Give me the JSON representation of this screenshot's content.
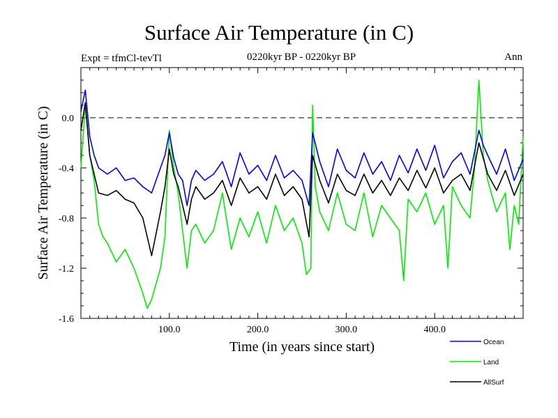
{
  "chart_data": {
    "type": "line",
    "title": "Surface Air Temperature (in C)",
    "subtitle_left": "Expt = tfmCl-tevTl",
    "subtitle_center": "0220kyr BP - 0220kyr BP",
    "subtitle_right": "Ann",
    "xlabel": "Time (in years since start)",
    "ylabel": "Surface Air Temperature (in C)",
    "xlim": [
      0,
      500
    ],
    "ylim": [
      -1.6,
      0.4
    ],
    "xticks": [
      {
        "value": 100,
        "label": "100.0"
      },
      {
        "value": 200,
        "label": "200.0"
      },
      {
        "value": 300,
        "label": "300.0"
      },
      {
        "value": 400,
        "label": "400.0"
      }
    ],
    "yticks": [
      {
        "value": 0.0,
        "label": "0.0"
      },
      {
        "value": -0.4,
        "label": "-0.4"
      },
      {
        "value": -0.8,
        "label": "-0.8"
      },
      {
        "value": -1.2,
        "label": "-1.2"
      },
      {
        "value": -1.6,
        "label": "-1.6"
      }
    ],
    "reference_line": {
      "y": 0.0,
      "style": "dashed"
    },
    "legend_placement": "bottom-right",
    "series": [
      {
        "name": "Ocean",
        "color": "#0000ee",
        "x": [
          0,
          5,
          10,
          15,
          20,
          30,
          40,
          50,
          60,
          70,
          80,
          90,
          95,
          100,
          105,
          110,
          115,
          120,
          125,
          130,
          140,
          150,
          160,
          170,
          180,
          190,
          200,
          210,
          220,
          230,
          240,
          250,
          258,
          262,
          270,
          280,
          290,
          300,
          310,
          320,
          330,
          340,
          350,
          360,
          370,
          380,
          390,
          400,
          410,
          420,
          430,
          440,
          450,
          455,
          460,
          470,
          480,
          490,
          500
        ],
        "y": [
          0.05,
          0.22,
          -0.15,
          -0.3,
          -0.4,
          -0.45,
          -0.4,
          -0.5,
          -0.48,
          -0.55,
          -0.6,
          -0.4,
          -0.3,
          -0.12,
          -0.32,
          -0.45,
          -0.5,
          -0.7,
          -0.5,
          -0.42,
          -0.5,
          -0.45,
          -0.35,
          -0.55,
          -0.28,
          -0.45,
          -0.38,
          -0.5,
          -0.3,
          -0.48,
          -0.42,
          -0.5,
          -0.7,
          -0.12,
          -0.35,
          -0.55,
          -0.25,
          -0.42,
          -0.48,
          -0.28,
          -0.45,
          -0.35,
          -0.5,
          -0.3,
          -0.44,
          -0.25,
          -0.42,
          -0.22,
          -0.48,
          -0.35,
          -0.28,
          -0.45,
          -0.1,
          -0.22,
          -0.3,
          -0.45,
          -0.25,
          -0.5,
          -0.33
        ]
      },
      {
        "name": "Land",
        "color": "#00ee00",
        "x": [
          0,
          5,
          10,
          15,
          20,
          25,
          30,
          40,
          50,
          60,
          70,
          75,
          80,
          90,
          95,
          100,
          105,
          110,
          115,
          120,
          125,
          130,
          140,
          150,
          160,
          170,
          180,
          190,
          200,
          210,
          220,
          230,
          240,
          250,
          255,
          260,
          262,
          265,
          270,
          280,
          290,
          300,
          310,
          320,
          330,
          340,
          350,
          360,
          365,
          370,
          380,
          390,
          400,
          410,
          415,
          420,
          430,
          440,
          445,
          450,
          455,
          460,
          470,
          480,
          485,
          490,
          495,
          500
        ],
        "y": [
          -0.4,
          0.1,
          -0.3,
          -0.5,
          -0.85,
          -0.95,
          -1.0,
          -1.15,
          -1.05,
          -1.2,
          -1.4,
          -1.52,
          -1.45,
          -1.2,
          -0.95,
          -0.1,
          -0.4,
          -0.6,
          -0.9,
          -1.2,
          -0.9,
          -0.85,
          -1.0,
          -0.9,
          -0.6,
          -1.05,
          -0.8,
          -0.95,
          -0.75,
          -1.0,
          -0.7,
          -0.9,
          -0.8,
          -1.0,
          -1.25,
          -1.2,
          0.1,
          -0.55,
          -0.75,
          -0.9,
          -0.6,
          -0.85,
          -0.9,
          -0.6,
          -0.95,
          -0.7,
          -0.8,
          -0.9,
          -1.3,
          -0.65,
          -0.75,
          -0.6,
          -0.85,
          -0.7,
          -1.2,
          -0.55,
          -0.7,
          -0.8,
          -0.4,
          0.3,
          -0.3,
          -0.5,
          -0.75,
          -0.6,
          -1.05,
          -0.7,
          -0.85,
          -0.15
        ]
      },
      {
        "name": "AllSurf",
        "color": "#000000",
        "x": [
          0,
          5,
          10,
          15,
          20,
          30,
          40,
          50,
          60,
          70,
          75,
          80,
          90,
          95,
          100,
          105,
          110,
          120,
          125,
          130,
          140,
          150,
          160,
          170,
          180,
          190,
          200,
          210,
          220,
          230,
          240,
          250,
          258,
          262,
          270,
          280,
          290,
          300,
          310,
          320,
          330,
          340,
          350,
          360,
          370,
          380,
          390,
          400,
          410,
          420,
          430,
          440,
          450,
          460,
          470,
          480,
          490,
          500
        ],
        "y": [
          -0.1,
          0.12,
          -0.3,
          -0.45,
          -0.6,
          -0.62,
          -0.58,
          -0.65,
          -0.68,
          -0.8,
          -0.95,
          -1.1,
          -0.75,
          -0.55,
          -0.25,
          -0.45,
          -0.55,
          -0.85,
          -0.65,
          -0.55,
          -0.65,
          -0.6,
          -0.5,
          -0.7,
          -0.48,
          -0.6,
          -0.55,
          -0.65,
          -0.45,
          -0.62,
          -0.55,
          -0.65,
          -0.95,
          -0.3,
          -0.5,
          -0.68,
          -0.45,
          -0.58,
          -0.62,
          -0.45,
          -0.6,
          -0.5,
          -0.62,
          -0.48,
          -0.58,
          -0.42,
          -0.56,
          -0.4,
          -0.6,
          -0.5,
          -0.45,
          -0.58,
          -0.2,
          -0.45,
          -0.58,
          -0.42,
          -0.62,
          -0.45
        ]
      }
    ]
  }
}
